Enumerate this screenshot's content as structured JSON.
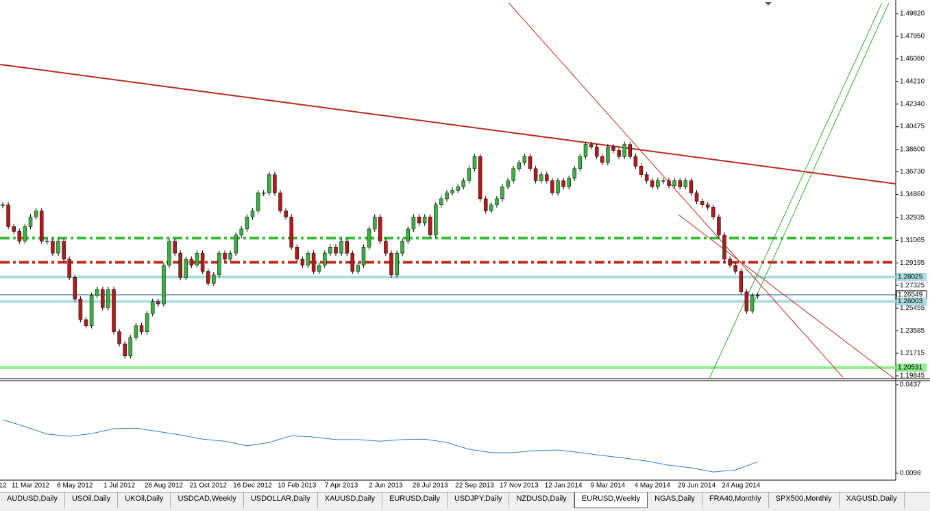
{
  "chart_data": {
    "type": "candlestick",
    "categories": [
      "12",
      null,
      null,
      null,
      null,
      "11 Mar 2012",
      null,
      null,
      null,
      null,
      null,
      null,
      null,
      "6 May 2012",
      null,
      null,
      null,
      null,
      null,
      null,
      null,
      "1 Jul 2012",
      null,
      null,
      null,
      null,
      null,
      null,
      null,
      "26 Aug 2012",
      null,
      null,
      null,
      null,
      null,
      null,
      null,
      "21 Oct 2012",
      null,
      null,
      null,
      null,
      null,
      null,
      null,
      "16 Dec 2012",
      null,
      null,
      null,
      null,
      null,
      null,
      null,
      "10 Feb 2013",
      null,
      null,
      null,
      null,
      null,
      null,
      null,
      "7 Apr 2013",
      null,
      null,
      null,
      null,
      null,
      null,
      null,
      "2 Jun 2013",
      null,
      null,
      null,
      null,
      null,
      null,
      null,
      "28 Jul 2013",
      null,
      null,
      null,
      null,
      null,
      null,
      null,
      "22 Sep 2013",
      null,
      null,
      null,
      null,
      null,
      null,
      null,
      "17 Nov 2013",
      null,
      null,
      null,
      null,
      null,
      null,
      null,
      "12 Jan 2014",
      null,
      null,
      null,
      null,
      null,
      null,
      null,
      "9 Mar 2014",
      null,
      null,
      null,
      null,
      null,
      null,
      null,
      "4 May 2014",
      null,
      null,
      null,
      null,
      null,
      null,
      null,
      "29 Jun 2014",
      null,
      null,
      null,
      null,
      null,
      null,
      null,
      "24 Aug 2014",
      null,
      null,
      null
    ],
    "values": [
      1.34,
      1.322,
      1.318,
      1.31,
      1.322,
      1.33,
      1.335,
      1.31,
      1.31,
      1.3,
      1.31,
      1.295,
      1.28,
      1.262,
      1.245,
      1.24,
      1.265,
      1.27,
      1.255,
      1.27,
      1.235,
      1.225,
      1.215,
      1.23,
      1.24,
      1.235,
      1.25,
      1.26,
      1.258,
      1.29,
      1.31,
      1.3,
      1.28,
      1.295,
      1.29,
      1.3,
      1.285,
      1.275,
      1.282,
      1.3,
      1.295,
      1.3,
      1.315,
      1.32,
      1.33,
      1.335,
      1.35,
      1.35,
      1.365,
      1.35,
      1.335,
      1.33,
      1.305,
      1.295,
      1.29,
      1.3,
      1.285,
      1.29,
      1.3,
      1.305,
      1.3,
      1.31,
      1.3,
      1.285,
      1.29,
      1.305,
      1.32,
      1.33,
      1.31,
      1.3,
      1.282,
      1.3,
      1.31,
      1.32,
      1.33,
      1.325,
      1.33,
      1.315,
      1.34,
      1.345,
      1.35,
      1.352,
      1.355,
      1.36,
      1.37,
      1.38,
      1.345,
      1.335,
      1.34,
      1.345,
      1.355,
      1.36,
      1.37,
      1.375,
      1.38,
      1.37,
      1.36,
      1.365,
      1.36,
      1.35,
      1.36,
      1.355,
      1.362,
      1.37,
      1.38,
      1.39,
      1.388,
      1.38,
      1.375,
      1.388,
      1.385,
      1.38,
      1.39,
      1.38,
      1.372,
      1.365,
      1.36,
      1.355,
      1.36,
      1.36,
      1.356,
      1.36,
      1.355,
      1.36,
      1.35,
      1.343,
      1.34,
      1.338,
      1.33,
      1.315,
      1.295,
      1.29,
      1.285,
      1.268,
      1.252,
      1.265,
      1.265
    ],
    "up_color": "#3cb043",
    "down_color": "#b01c1c",
    "ylim": [
      1.19845,
      1.4982
    ],
    "yticks": [
      {
        "value": 1.4982,
        "label": "1.49820"
      },
      {
        "value": 1.4795,
        "label": "1.47950"
      },
      {
        "value": 1.4608,
        "label": "1.46080"
      },
      {
        "value": 1.4421,
        "label": "1.44210"
      },
      {
        "value": 1.4234,
        "label": "1.42340"
      },
      1.40475,
      {
        "value": 1.386,
        "label": "1.38600"
      },
      {
        "value": 1.3673,
        "label": "1.36730"
      },
      {
        "value": 1.3486,
        "label": "1.34860"
      },
      1.32935,
      1.31065,
      1.29195,
      1.27325,
      1.25455,
      1.23585,
      1.21715,
      1.19845
    ],
    "levels": [
      {
        "value": 1.3125,
        "color": "#33bb33",
        "style": "dashdot"
      },
      {
        "value": 1.2925,
        "color": "#c0281c",
        "style": "dashdot"
      },
      {
        "value": 1.28025,
        "color": "#a8dce0",
        "style": "solid"
      },
      {
        "value": 1.26549,
        "color": "#2a5c9a",
        "style": "thin"
      },
      {
        "value": 1.26003,
        "color": "#a8dce0",
        "style": "solid"
      },
      {
        "value": 1.20531,
        "color": "#90ee90",
        "style": "solid"
      }
    ],
    "indicator": {
      "color": "#2f7ccc",
      "ylim": [
        0.0098,
        0.0437
      ],
      "yticks": [
        0.0437,
        0.0098
      ],
      "values": [
        0.0303,
        0.0277,
        0.0248,
        0.024,
        0.025,
        0.0269,
        0.0271,
        0.0258,
        0.0245,
        0.0229,
        0.0221,
        0.0203,
        0.0216,
        0.0242,
        0.0237,
        0.0227,
        0.0227,
        0.0221,
        0.0227,
        0.0229,
        0.0216,
        0.019,
        0.0177,
        0.0177,
        0.0185,
        0.0187,
        0.0177,
        0.0166,
        0.0156,
        0.0145,
        0.0129,
        0.0119,
        0.0103,
        0.0111,
        0.0142
      ]
    }
  },
  "tabs": {
    "items": [
      "AUDUSD,Daily",
      "USOil,Daily",
      "UKOil,Daily",
      "USDCAD,Weekly",
      "USDOLLAR,Daily",
      "XAUUSD,Daily",
      "EURUSD,Daily",
      "USDJPY,Daily",
      "NZDUSD,Daily",
      "EURUSD,Weekly",
      "NGAS,Daily",
      "FRA40,Monthly",
      "SPX500,Monthly",
      "XAGUSD,Daily"
    ],
    "active_index": 9
  }
}
